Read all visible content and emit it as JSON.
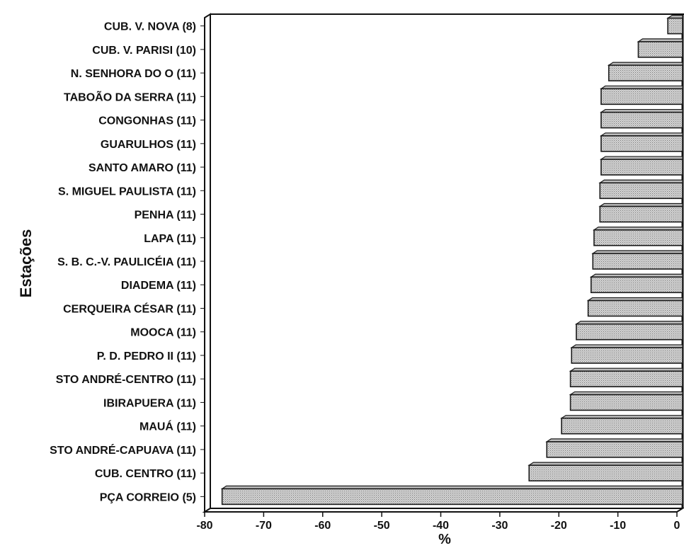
{
  "chart_data": {
    "type": "bar",
    "orientation": "horizontal",
    "ylabel": "Estações",
    "xlabel": "%",
    "categories": [
      "CUB. V. NOVA (8)",
      "CUB. V. PARISI (10)",
      "N. SENHORA DO O (11)",
      "TABOÃO DA SERRA (11)",
      "CONGONHAS (11)",
      "GUARULHOS (11)",
      "SANTO AMARO (11)",
      "S. MIGUEL PAULISTA (11)",
      "PENHA (11)",
      "LAPA (11)",
      "S. B. C.-V. PAULICÉIA (11)",
      "DIADEMA (11)",
      "CERQUEIRA CÉSAR (11)",
      "MOOCA (11)",
      "P. D. PEDRO II (11)",
      "STO ANDRÉ-CENTRO (11)",
      "IBIRAPUERA (11)",
      "MAUÁ (11)",
      "STO ANDRÉ-CAPUAVA (11)",
      "CUB. CENTRO (11)",
      "PÇA CORREIO (5)"
    ],
    "values": [
      -2.5,
      -7.5,
      -12.5,
      -13.8,
      -13.8,
      -13.8,
      -13.8,
      -14,
      -14,
      -15,
      -15.2,
      -15.5,
      -16,
      -18,
      -18.8,
      -19,
      -19,
      -20.5,
      -23,
      -26,
      -78
    ],
    "xlim": [
      -80,
      0
    ],
    "xticks": [
      "-80",
      "-70",
      "-60",
      "-50",
      "-40",
      "-30",
      "-20",
      "-10",
      "0"
    ],
    "tick_values": [
      -80,
      -70,
      -60,
      -50,
      -40,
      -30,
      -20,
      -10,
      0
    ],
    "grid": false,
    "bar_fill": "#c9c9c9",
    "bar_edge": "#1a1a1a"
  }
}
